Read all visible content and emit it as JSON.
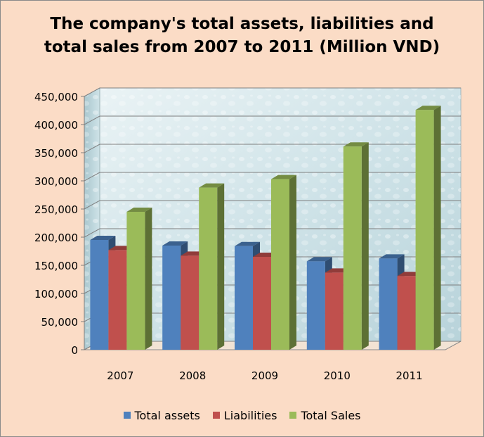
{
  "chart_data": {
    "type": "bar",
    "title_lines": [
      "The company's total assets, liabilities and",
      "total sales from 2007 to 2011 (Million VND)"
    ],
    "categories": [
      "2007",
      "2008",
      "2009",
      "2010",
      "2011"
    ],
    "series": [
      {
        "name": "Total assets",
        "values": [
          195000,
          185000,
          184000,
          157000,
          162000
        ],
        "color": "#4f81bd"
      },
      {
        "name": "Liabilities",
        "values": [
          177000,
          167000,
          165000,
          137000,
          131000
        ],
        "color": "#c0504d"
      },
      {
        "name": "Total Sales",
        "values": [
          245000,
          288000,
          303000,
          361000,
          426000
        ],
        "color": "#9bbb59"
      }
    ],
    "ylim": [
      0,
      450000
    ],
    "y_ticks": [
      0,
      50000,
      100000,
      150000,
      200000,
      250000,
      300000,
      350000,
      400000,
      450000
    ],
    "y_tick_labels": [
      "0",
      "50,000",
      "100,000",
      "150,000",
      "200,000",
      "250,000",
      "300,000",
      "350,000",
      "400,000",
      "450,000"
    ],
    "grid": true,
    "legend_position": "bottom"
  }
}
